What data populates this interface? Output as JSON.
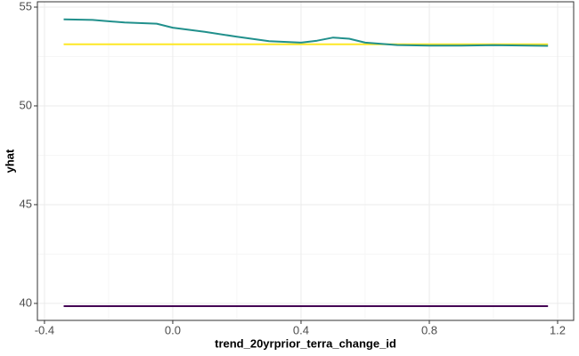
{
  "chart_data": {
    "type": "line",
    "xlabel": "trend_20yrprior_terra_change_id",
    "ylabel": "yhat",
    "xlim": [
      -0.422,
      1.25
    ],
    "ylim": [
      39.14,
      55.27
    ],
    "xticks": [
      -0.4,
      {
        "value": 0,
        "label": "0.0"
      },
      0.4,
      0.8,
      1.2
    ],
    "yticks": [
      40,
      45,
      50,
      55
    ],
    "xminorticks": [
      -0.2,
      0.2,
      0.6,
      1.0
    ],
    "yminorticks": [
      42.5,
      47.5,
      52.5
    ],
    "grid": true,
    "series": [
      {
        "color": "#440154",
        "x": [
          -0.34,
          1.17
        ],
        "values": [
          39.86,
          39.86
        ]
      },
      {
        "color": "#fde725",
        "x": [
          -0.34,
          1.17
        ],
        "values": [
          53.12,
          53.12
        ]
      },
      {
        "color": "#21908c",
        "x": [
          -0.34,
          -0.25,
          -0.15,
          -0.05,
          0.0,
          0.1,
          0.2,
          0.3,
          0.4,
          0.45,
          0.5,
          0.55,
          0.6,
          0.7,
          0.8,
          0.9,
          1.0,
          1.17
        ],
        "values": [
          54.38,
          54.35,
          54.22,
          54.16,
          53.96,
          53.75,
          53.5,
          53.28,
          53.2,
          53.3,
          53.46,
          53.4,
          53.2,
          53.08,
          53.05,
          53.05,
          53.07,
          53.04
        ]
      }
    ]
  }
}
